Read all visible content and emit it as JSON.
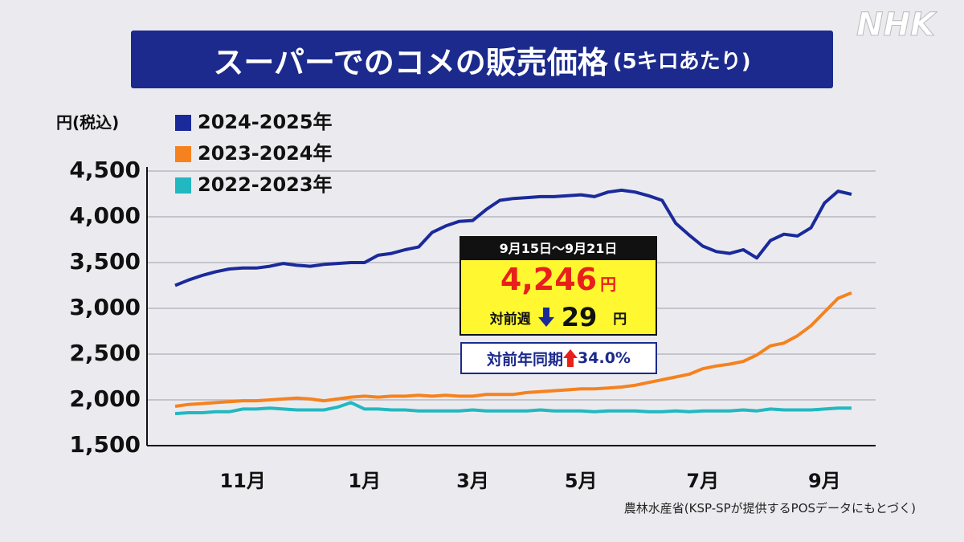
{
  "logo": "NHK",
  "chart_data": {
    "type": "line",
    "title": "スーパーでのコメの販売価格",
    "subtitle": "(5キロあたり)",
    "y_label": "円(税込)",
    "categories": [
      null,
      null,
      null,
      null,
      null,
      "11月",
      null,
      null,
      null,
      null,
      null,
      null,
      null,
      null,
      "1月",
      null,
      null,
      null,
      null,
      null,
      null,
      null,
      "3月",
      null,
      null,
      null,
      null,
      null,
      null,
      null,
      "5月",
      null,
      null,
      null,
      null,
      null,
      null,
      null,
      null,
      "7月",
      null,
      null,
      null,
      null,
      null,
      null,
      null,
      null,
      "9月",
      null,
      null
    ],
    "series": [
      {
        "name": "2024-2025年",
        "color": "#1b2a9a",
        "values": [
          3250,
          3310,
          3360,
          3400,
          3430,
          3440,
          3440,
          3460,
          3490,
          3470,
          3460,
          3480,
          3490,
          3500,
          3500,
          3580,
          3600,
          3640,
          3670,
          3830,
          3900,
          3950,
          3960,
          4080,
          4180,
          4200,
          4210,
          4220,
          4220,
          4230,
          4240,
          4220,
          4270,
          4290,
          4270,
          4230,
          4180,
          3930,
          3800,
          3680,
          3620,
          3600,
          3640,
          3550,
          3740,
          3810,
          3790,
          3880,
          4150,
          4280,
          4246
        ]
      },
      {
        "name": "2023-2024年",
        "color": "#f5821f",
        "values": [
          1930,
          1950,
          1960,
          1970,
          1980,
          1990,
          1990,
          2000,
          2010,
          2020,
          2010,
          1990,
          2010,
          2030,
          2040,
          2030,
          2040,
          2040,
          2050,
          2040,
          2050,
          2040,
          2040,
          2060,
          2060,
          2060,
          2080,
          2090,
          2100,
          2110,
          2120,
          2120,
          2130,
          2140,
          2160,
          2190,
          2220,
          2250,
          2280,
          2340,
          2370,
          2390,
          2420,
          2490,
          2590,
          2620,
          2700,
          2810,
          2960,
          3110,
          3169
        ]
      },
      {
        "name": "2022-2023年",
        "color": "#22b8c0",
        "values": [
          1850,
          1860,
          1860,
          1870,
          1870,
          1900,
          1900,
          1910,
          1900,
          1890,
          1890,
          1890,
          1920,
          1970,
          1900,
          1900,
          1890,
          1890,
          1880,
          1880,
          1880,
          1880,
          1890,
          1880,
          1880,
          1880,
          1880,
          1890,
          1880,
          1880,
          1880,
          1870,
          1880,
          1880,
          1880,
          1870,
          1870,
          1880,
          1870,
          1880,
          1880,
          1880,
          1890,
          1880,
          1900,
          1890,
          1890,
          1890,
          1900,
          1910,
          1910
        ]
      }
    ],
    "ylim": [
      1500,
      4500
    ],
    "yticks": [
      {
        "value": 1500,
        "label": "1,500"
      },
      {
        "value": 2000,
        "label": "2,000"
      },
      {
        "value": 2500,
        "label": "2,500"
      },
      {
        "value": 3000,
        "label": "3,000"
      },
      {
        "value": 3500,
        "label": "3,500"
      },
      {
        "value": 4000,
        "label": "4,000"
      },
      {
        "value": 4500,
        "label": "4,500"
      }
    ],
    "grid": true,
    "callout": {
      "period": "9月15日～9月21日",
      "price": "4,246",
      "price_unit": "円",
      "wow_label": "対前週",
      "wow_change": "29",
      "wow_unit": "円",
      "yoy_label": "対前年同期",
      "yoy_change": "34.0%"
    },
    "source": "農林水産省(KSP-SPが提供するPOSデータにもとづく)"
  }
}
